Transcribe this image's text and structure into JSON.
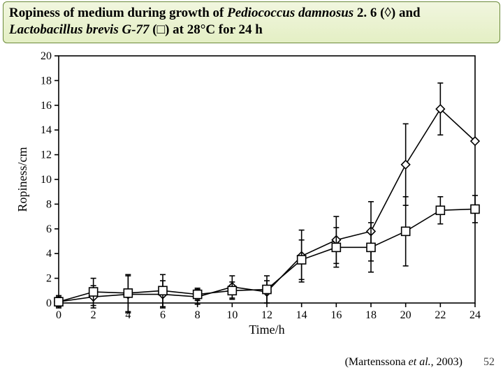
{
  "title": {
    "parts": [
      {
        "text": "Ropiness of medium during growth of ",
        "bold": true,
        "italic": false
      },
      {
        "text": "Pediococcus damnosus",
        "bold": true,
        "italic": true
      },
      {
        "text": " 2. 6 (◊) and ",
        "bold": true,
        "italic": false
      },
      {
        "text": "Lactobacillus brevis G-77",
        "bold": true,
        "italic": true
      },
      {
        "text": " (□) at 28°C for 24 h",
        "bold": true,
        "italic": false
      }
    ]
  },
  "citation": {
    "prefix": "(Martenssona ",
    "italic": "et al.",
    "suffix": ", 2003)"
  },
  "page_number": "52",
  "chart": {
    "type": "line-scatter-errorbar",
    "background_color": "#ffffff",
    "axis_color": "#000000",
    "line_color": "#000000",
    "marker_stroke": "#000000",
    "marker_fill": "#ffffff",
    "tick_fontsize": 16,
    "label_fontsize": 18,
    "axis_linewidth": 1.6,
    "series_linewidth": 1.6,
    "marker_size": 6,
    "errorbar_cap": 8,
    "x": {
      "label": "Time/h",
      "min": 0,
      "max": 24,
      "ticks": [
        0,
        2,
        4,
        6,
        8,
        10,
        12,
        14,
        16,
        18,
        20,
        22,
        24
      ]
    },
    "y": {
      "label": "Ropiness/cm",
      "min": 0,
      "max": 20,
      "ticks": [
        0,
        2,
        4,
        6,
        8,
        10,
        12,
        14,
        16,
        18,
        20
      ]
    },
    "series": [
      {
        "name": "Pediococcus damnosus 2.6",
        "marker": "diamond",
        "points": [
          {
            "x": 0,
            "y": 0.1,
            "err": 0.5
          },
          {
            "x": 2,
            "y": 0.5,
            "err": 0.9
          },
          {
            "x": 4,
            "y": 0.7,
            "err": 1.5
          },
          {
            "x": 6,
            "y": 0.7,
            "err": 1.1
          },
          {
            "x": 8,
            "y": 0.5,
            "err": 0.6
          },
          {
            "x": 10,
            "y": 1.3,
            "err": 0.9
          },
          {
            "x": 12,
            "y": 0.9,
            "err": 0.9
          },
          {
            "x": 14,
            "y": 3.8,
            "err": 2.1
          },
          {
            "x": 16,
            "y": 5.1,
            "err": 1.9
          },
          {
            "x": 18,
            "y": 5.8,
            "err": 2.4
          },
          {
            "x": 20,
            "y": 11.2,
            "err": 3.3
          },
          {
            "x": 22,
            "y": 15.7,
            "err": 2.1
          },
          {
            "x": 24,
            "y": 13.1,
            "err": 0.0
          }
        ]
      },
      {
        "name": "Lactobacillus brevis G-77",
        "marker": "square",
        "points": [
          {
            "x": 0,
            "y": 0.1,
            "err": 0.4
          },
          {
            "x": 2,
            "y": 0.9,
            "err": 1.1
          },
          {
            "x": 4,
            "y": 0.8,
            "err": 1.5
          },
          {
            "x": 6,
            "y": 1.0,
            "err": 1.3
          },
          {
            "x": 8,
            "y": 0.7,
            "err": 0.5
          },
          {
            "x": 10,
            "y": 1.0,
            "err": 0.7
          },
          {
            "x": 12,
            "y": 1.1,
            "err": 1.1
          },
          {
            "x": 14,
            "y": 3.5,
            "err": 1.6
          },
          {
            "x": 16,
            "y": 4.5,
            "err": 1.6
          },
          {
            "x": 18,
            "y": 4.5,
            "err": 2.0
          },
          {
            "x": 20,
            "y": 5.8,
            "err": 2.8
          },
          {
            "x": 22,
            "y": 7.5,
            "err": 1.1
          },
          {
            "x": 24,
            "y": 7.6,
            "err": 1.1
          }
        ]
      }
    ]
  }
}
